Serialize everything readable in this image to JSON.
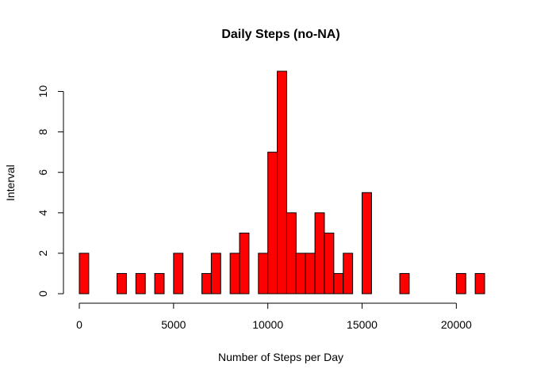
{
  "chart_data": {
    "type": "bar",
    "title": "Daily Steps (no-NA)",
    "xlabel": "Number of Steps per Day",
    "ylabel": "Interval",
    "bin_width": 500,
    "bin_starts": [
      0,
      500,
      1000,
      1500,
      2000,
      2500,
      3000,
      3500,
      4000,
      4500,
      5000,
      5500,
      6000,
      6500,
      7000,
      7500,
      8000,
      8500,
      9000,
      9500,
      10000,
      10500,
      11000,
      11500,
      12000,
      12500,
      13000,
      13500,
      14000,
      14500,
      15000,
      15500,
      16000,
      16500,
      17000,
      17500,
      18000,
      18500,
      19000,
      19500,
      20000,
      20500,
      21000
    ],
    "values": [
      2,
      0,
      0,
      0,
      1,
      0,
      1,
      0,
      1,
      0,
      2,
      0,
      0,
      1,
      2,
      0,
      2,
      3,
      0,
      2,
      7,
      11,
      4,
      2,
      2,
      4,
      3,
      1,
      2,
      0,
      5,
      0,
      0,
      0,
      1,
      0,
      0,
      0,
      0,
      0,
      1,
      0,
      1
    ],
    "xlim": [
      0,
      21500
    ],
    "ylim": [
      0,
      11
    ],
    "x_ticks": [
      0,
      5000,
      10000,
      15000,
      20000
    ],
    "y_ticks": [
      0,
      2,
      4,
      6,
      8,
      10
    ],
    "bar_color": "#ff0000",
    "grid": false
  }
}
